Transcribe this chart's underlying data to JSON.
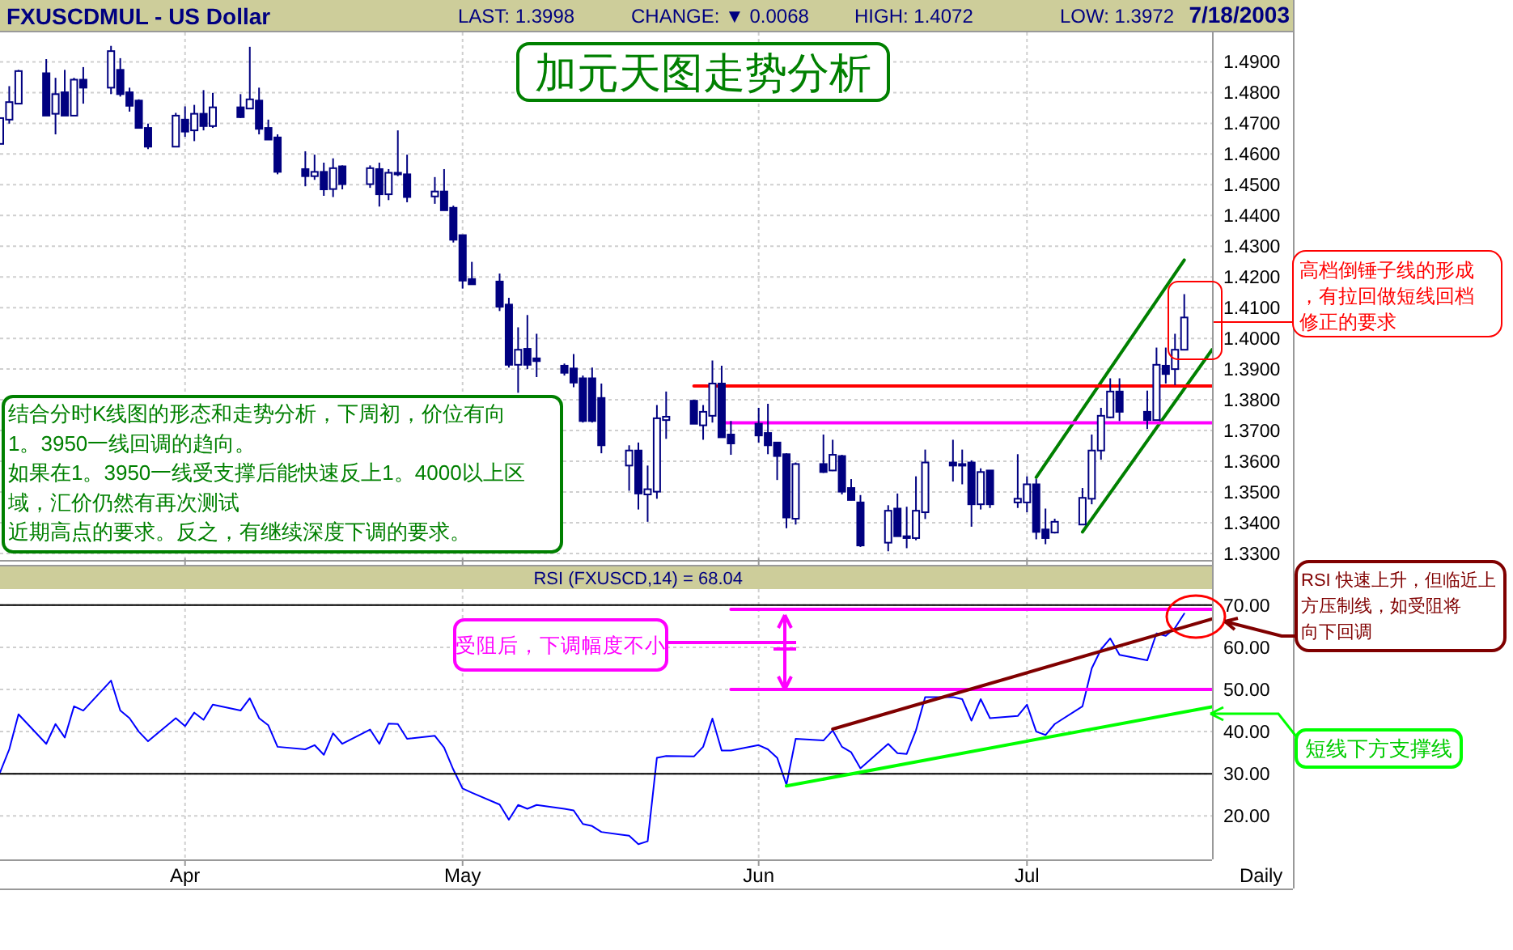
{
  "chart_data": [
    {
      "type": "candlestick",
      "title": "FXUSCDMUL - US Dollar",
      "x": [
        "2003-03-12",
        "2003-03-13",
        "2003-03-14",
        "2003-03-17",
        "2003-03-18",
        "2003-03-19",
        "2003-03-20",
        "2003-03-21",
        "2003-03-24",
        "2003-03-25",
        "2003-03-26",
        "2003-03-27",
        "2003-03-28",
        "2003-03-31",
        "2003-04-01",
        "2003-04-02",
        "2003-04-03",
        "2003-04-04",
        "2003-04-07",
        "2003-04-08",
        "2003-04-09",
        "2003-04-10",
        "2003-04-11",
        "2003-04-14",
        "2003-04-15",
        "2003-04-16",
        "2003-04-17",
        "2003-04-18",
        "2003-04-21",
        "2003-04-22",
        "2003-04-23",
        "2003-04-24",
        "2003-04-25",
        "2003-04-28",
        "2003-04-29",
        "2003-04-30",
        "2003-05-01",
        "2003-05-02",
        "2003-05-05",
        "2003-05-06",
        "2003-05-07",
        "2003-05-08",
        "2003-05-09",
        "2003-05-12",
        "2003-05-13",
        "2003-05-14",
        "2003-05-15",
        "2003-05-16",
        "2003-05-19",
        "2003-05-20",
        "2003-05-21",
        "2003-05-22",
        "2003-05-23",
        "2003-05-26",
        "2003-05-27",
        "2003-05-28",
        "2003-05-29",
        "2003-05-30",
        "2003-06-02",
        "2003-06-03",
        "2003-06-04",
        "2003-06-05",
        "2003-06-06",
        "2003-06-09",
        "2003-06-10",
        "2003-06-11",
        "2003-06-12",
        "2003-06-13",
        "2003-06-16",
        "2003-06-17",
        "2003-06-18",
        "2003-06-19",
        "2003-06-20",
        "2003-06-23",
        "2003-06-24",
        "2003-06-25",
        "2003-06-26",
        "2003-06-27",
        "2003-06-30",
        "2003-07-01",
        "2003-07-02",
        "2003-07-03",
        "2003-07-04",
        "2003-07-07",
        "2003-07-08",
        "2003-07-09",
        "2003-07-10",
        "2003-07-11",
        "2003-07-14",
        "2003-07-15",
        "2003-07-16",
        "2003-07-17",
        "2003-07-18"
      ],
      "ohlc": [
        [
          1.4633,
          1.4717,
          1.4633,
          1.4717
        ],
        [
          1.4712,
          1.4821,
          1.4699,
          1.4769
        ],
        [
          1.4764,
          1.4874,
          1.4764,
          1.487
        ],
        [
          1.4863,
          1.4909,
          1.4725,
          1.4725
        ],
        [
          1.4731,
          1.4848,
          1.4664,
          1.4795
        ],
        [
          1.4801,
          1.4874,
          1.4725,
          1.4725
        ],
        [
          1.4725,
          1.4848,
          1.4725,
          1.4842
        ],
        [
          1.4842,
          1.4883,
          1.4764,
          1.4816
        ],
        [
          1.4816,
          1.4952,
          1.4795,
          1.4935
        ],
        [
          1.4874,
          1.4912,
          1.4787,
          1.4795
        ],
        [
          1.4801,
          1.4816,
          1.4738,
          1.4757
        ],
        [
          1.4774,
          1.4778,
          1.4685,
          1.4685
        ],
        [
          1.4685,
          1.4699,
          1.4616,
          1.4624
        ],
        [
          1.4624,
          1.4734,
          1.4624,
          1.4725
        ],
        [
          1.4712,
          1.4755,
          1.4656,
          1.4673
        ],
        [
          1.4677,
          1.476,
          1.4642,
          1.4731
        ],
        [
          1.4731,
          1.4808,
          1.4677,
          1.4691
        ],
        [
          1.4691,
          1.4799,
          1.4685,
          1.4752
        ],
        [
          1.4752,
          1.4795,
          1.4717,
          1.472
        ],
        [
          1.4748,
          1.4949,
          1.4748,
          1.4778
        ],
        [
          1.4774,
          1.4816,
          1.4664,
          1.4682
        ],
        [
          1.4685,
          1.4712,
          1.4647,
          1.4647
        ],
        [
          1.4654,
          1.4664,
          1.4534,
          1.4542
        ],
        [
          1.4551,
          1.4609,
          1.4495,
          1.4528
        ],
        [
          1.4528,
          1.4598,
          1.4516,
          1.4542
        ],
        [
          1.4542,
          1.4572,
          1.4464,
          1.4485
        ],
        [
          1.4486,
          1.4586,
          1.446,
          1.4554
        ],
        [
          1.456,
          1.4563,
          1.4485,
          1.4502
        ],
        [
          1.4502,
          1.4563,
          1.449,
          1.4554
        ],
        [
          1.4551,
          1.4572,
          1.4429,
          1.4469
        ],
        [
          1.4469,
          1.4551,
          1.445,
          1.4539
        ],
        [
          1.4539,
          1.4677,
          1.4528,
          1.4534
        ],
        [
          1.4534,
          1.4598,
          1.4443,
          1.446
        ],
        [
          1.4462,
          1.4525,
          1.4438,
          1.4478
        ],
        [
          1.4478,
          1.4551,
          1.4417,
          1.4417
        ],
        [
          1.4425,
          1.4432,
          1.4312,
          1.4321
        ],
        [
          1.4336,
          1.4336,
          1.4162,
          1.4188
        ],
        [
          1.4193,
          1.4249,
          1.4176,
          1.4176
        ],
        [
          1.4185,
          1.4211,
          1.4089,
          1.4103
        ],
        [
          1.411,
          1.4132,
          1.3905,
          1.3914
        ],
        [
          1.3914,
          1.4036,
          1.3823,
          1.3963
        ],
        [
          1.3966,
          1.4076,
          1.39,
          1.3914
        ],
        [
          1.3935,
          1.4015,
          1.3874,
          1.3926
        ],
        [
          1.3911,
          1.3918,
          1.3879,
          1.3888
        ],
        [
          1.3902,
          1.3949,
          1.3841,
          1.3856
        ],
        [
          1.387,
          1.3879,
          1.3726,
          1.3731
        ],
        [
          1.387,
          1.3905,
          1.3726,
          1.3731
        ],
        [
          1.3806,
          1.3853,
          1.3626,
          1.3652
        ],
        [
          1.3586,
          1.3652,
          1.3504,
          1.3635
        ],
        [
          1.3635,
          1.3661,
          1.3443,
          1.3495
        ],
        [
          1.3492,
          1.3586,
          1.3403,
          1.3509
        ],
        [
          1.3501,
          1.3783,
          1.3478,
          1.374
        ],
        [
          1.3734,
          1.3827,
          1.3673,
          1.3745
        ],
        [
          1.3797,
          1.38,
          1.3722,
          1.3722
        ],
        [
          1.3717,
          1.3783,
          1.367,
          1.3761
        ],
        [
          1.3748,
          1.3928,
          1.3726,
          1.3853
        ],
        [
          1.3853,
          1.3911,
          1.3678,
          1.3678
        ],
        [
          1.3687,
          1.3731,
          1.3621,
          1.3658
        ],
        [
          1.3722,
          1.3774,
          1.3661,
          1.3684
        ],
        [
          1.3692,
          1.3787,
          1.3623,
          1.3652
        ],
        [
          1.3661,
          1.3661,
          1.3539,
          1.3617
        ],
        [
          1.3623,
          1.3626,
          1.3382,
          1.3417
        ],
        [
          1.3413,
          1.3596,
          1.3394,
          1.3591
        ],
        [
          1.3591,
          1.3687,
          1.3562,
          1.3565
        ],
        [
          1.357,
          1.367,
          1.3568,
          1.3621
        ],
        [
          1.3617,
          1.3621,
          1.3492,
          1.3501
        ],
        [
          1.3513,
          1.3542,
          1.3473,
          1.3474
        ],
        [
          1.3466,
          1.349,
          1.3321,
          1.3326
        ],
        [
          1.3335,
          1.3457,
          1.3307,
          1.3439
        ],
        [
          1.3446,
          1.3495,
          1.3356,
          1.3356
        ],
        [
          1.3356,
          1.3452,
          1.3317,
          1.335
        ],
        [
          1.335,
          1.3551,
          1.3343,
          1.3439
        ],
        [
          1.3434,
          1.3638,
          1.3412,
          1.3596
        ],
        [
          1.3596,
          1.367,
          1.3534,
          1.3586
        ],
        [
          1.3591,
          1.3638,
          1.3525,
          1.3586
        ],
        [
          1.3596,
          1.3603,
          1.3387,
          1.346
        ],
        [
          1.346,
          1.3577,
          1.3443,
          1.3565
        ],
        [
          1.357,
          1.357,
          1.3448,
          1.346
        ],
        [
          1.3466,
          1.3623,
          1.3448,
          1.3478
        ],
        [
          1.3466,
          1.3551,
          1.3434,
          1.3525
        ],
        [
          1.3525,
          1.3542,
          1.3346,
          1.337
        ],
        [
          1.3378,
          1.3446,
          1.333,
          1.335
        ],
        [
          1.3368,
          1.3413,
          1.3365,
          1.3403
        ],
        [
          1.3394,
          1.3513,
          1.3394,
          1.3481
        ],
        [
          1.3478,
          1.3687,
          1.346,
          1.3635
        ],
        [
          1.3635,
          1.3774,
          1.3605,
          1.3748
        ],
        [
          1.3743,
          1.387,
          1.374,
          1.3827
        ],
        [
          1.3827,
          1.387,
          1.3731,
          1.3761
        ],
        [
          1.3761,
          1.383,
          1.3705,
          1.3734
        ],
        [
          1.3734,
          1.397,
          1.3734,
          1.3914
        ],
        [
          1.3911,
          1.397,
          1.3853,
          1.3884
        ],
        [
          1.39,
          1.4015,
          1.3848,
          1.3963
        ],
        [
          1.3963,
          1.4144,
          1.3963,
          1.4068
        ]
      ],
      "color": "#000080",
      "series": [
        {
          "type": "line",
          "color": "#008000",
          "x": [
            "2003-07-02",
            "2003-07-18"
          ],
          "values": [
            1.3548,
            1.4255
          ]
        },
        {
          "type": "line",
          "color": "#008000",
          "x": [
            "2003-07-07",
            "2003-07-21"
          ],
          "values": [
            1.337,
            1.3963
          ]
        },
        {
          "type": "line",
          "color": "#ff0000",
          "x": [
            "2003-05-26",
            "2003-07-21"
          ],
          "values": [
            1.3845,
            1.3845
          ]
        },
        {
          "type": "line",
          "color": "#ff00ff",
          "x": [
            "2003-05-29",
            "2003-07-21"
          ],
          "values": [
            1.3725,
            1.3725
          ]
        }
      ],
      "xlim": [
        "2003-03-12",
        "2003-07-21"
      ],
      "xticks": [
        {
          "value": "2003-04-01",
          "label": null
        },
        {
          "value": "2003-05-01",
          "label": null
        },
        {
          "value": "2003-06-02",
          "label": null
        },
        {
          "value": "2003-07-01",
          "label": null
        }
      ],
      "ylim": [
        1.3284,
        1.4996
      ],
      "yticks": [
        {
          "value": 1.33,
          "label": "1.3300"
        },
        {
          "value": 1.34,
          "label": "1.3400"
        },
        {
          "value": 1.35,
          "label": "1.3500"
        },
        {
          "value": 1.36,
          "label": "1.3600"
        },
        {
          "value": 1.37,
          "label": "1.3700"
        },
        {
          "value": 1.38,
          "label": "1.3800"
        },
        {
          "value": 1.39,
          "label": "1.3900"
        },
        {
          "value": 1.4,
          "label": "1.4000"
        },
        {
          "value": 1.41,
          "label": "1.4100"
        },
        {
          "value": 1.42,
          "label": "1.4200"
        },
        {
          "value": 1.43,
          "label": "1.4300"
        },
        {
          "value": 1.44,
          "label": "1.4400"
        },
        {
          "value": 1.45,
          "label": "1.4500"
        },
        {
          "value": 1.46,
          "label": "1.4600"
        },
        {
          "value": 1.47,
          "label": "1.4700"
        },
        {
          "value": 1.48,
          "label": "1.4800"
        },
        {
          "value": 1.49,
          "label": "1.4900"
        }
      ],
      "tick_labels": "y",
      "grid": true,
      "annotations": [
        "LAST: 1.3998",
        "CHANGE: ▼ 0.0068",
        "HIGH: 1.4072",
        "LOW: 1.3972",
        "7/18/2003",
        "加元天图走势分析",
        "结合分时K线图的形态和走势分析，下周初，价位有向1。3950一线回调的趋向。如果在1。3950一线受支撑后能快速反上1。4000以上区域，汇价仍然有再次测试近期高点的要求。反之，有继续深度下调的要求。",
        "高档倒锤子线的形成，有拉回做短线回档修正的要求"
      ]
    },
    {
      "type": "line",
      "title": "RSI (FXUSCD,14) = 68.04",
      "x": [
        "2003-03-12",
        "2003-03-13",
        "2003-03-14",
        "2003-03-17",
        "2003-03-18",
        "2003-03-19",
        "2003-03-20",
        "2003-03-21",
        "2003-03-24",
        "2003-03-25",
        "2003-03-26",
        "2003-03-27",
        "2003-03-28",
        "2003-03-31",
        "2003-04-01",
        "2003-04-02",
        "2003-04-03",
        "2003-04-04",
        "2003-04-07",
        "2003-04-08",
        "2003-04-09",
        "2003-04-10",
        "2003-04-11",
        "2003-04-14",
        "2003-04-15",
        "2003-04-16",
        "2003-04-17",
        "2003-04-18",
        "2003-04-21",
        "2003-04-22",
        "2003-04-23",
        "2003-04-24",
        "2003-04-25",
        "2003-04-28",
        "2003-04-29",
        "2003-04-30",
        "2003-05-01",
        "2003-05-02",
        "2003-05-05",
        "2003-05-06",
        "2003-05-07",
        "2003-05-08",
        "2003-05-09",
        "2003-05-12",
        "2003-05-13",
        "2003-05-14",
        "2003-05-15",
        "2003-05-16",
        "2003-05-19",
        "2003-05-20",
        "2003-05-21",
        "2003-05-22",
        "2003-05-23",
        "2003-05-26",
        "2003-05-27",
        "2003-05-28",
        "2003-05-29",
        "2003-05-30",
        "2003-06-02",
        "2003-06-03",
        "2003-06-04",
        "2003-06-05",
        "2003-06-06",
        "2003-06-09",
        "2003-06-10",
        "2003-06-11",
        "2003-06-12",
        "2003-06-13",
        "2003-06-16",
        "2003-06-17",
        "2003-06-18",
        "2003-06-19",
        "2003-06-20",
        "2003-06-23",
        "2003-06-24",
        "2003-06-25",
        "2003-06-26",
        "2003-06-27",
        "2003-06-30",
        "2003-07-01",
        "2003-07-02",
        "2003-07-03",
        "2003-07-04",
        "2003-07-07",
        "2003-07-08",
        "2003-07-09",
        "2003-07-10",
        "2003-07-11",
        "2003-07-14",
        "2003-07-15",
        "2003-07-16",
        "2003-07-17",
        "2003-07-18"
      ],
      "series": [
        {
          "color": "#0000ff",
          "values": [
            30.3,
            35.8,
            44.1,
            37.1,
            41.8,
            38.6,
            46.0,
            45.0,
            52.1,
            45.0,
            43.2,
            40.0,
            37.7,
            43.2,
            41.3,
            44.5,
            42.8,
            46.4,
            45.0,
            47.9,
            43.2,
            41.5,
            36.4,
            35.8,
            36.8,
            34.5,
            39.6,
            37.1,
            40.5,
            37.1,
            41.9,
            41.8,
            38.3,
            39.0,
            36.2,
            31.0,
            26.5,
            25.5,
            22.7,
            19.1,
            22.6,
            21.7,
            22.6,
            21.7,
            21.3,
            18.1,
            17.6,
            16.2,
            15.3,
            13.3,
            14.0,
            33.8,
            34.2,
            34.1,
            36.4,
            43.1,
            35.5,
            35.5,
            36.8,
            35.8,
            33.8,
            27.4,
            38.3,
            37.9,
            40.3,
            36.4,
            35.1,
            31.3,
            37.1,
            34.9,
            34.7,
            40.3,
            48.2,
            48.2,
            47.7,
            42.6,
            47.7,
            43.2,
            43.7,
            46.4,
            40.0,
            39.2,
            41.8,
            46.0,
            55.0,
            59.5,
            62.1,
            58.2,
            56.9,
            63.3,
            62.7,
            64.6,
            68.0
          ]
        },
        {
          "color": "#000000",
          "x": [
            "2003-03-12",
            "2003-07-21"
          ],
          "values": [
            70,
            70
          ]
        },
        {
          "color": "#000000",
          "x": [
            "2003-03-12",
            "2003-07-21"
          ],
          "values": [
            30,
            30
          ]
        },
        {
          "color": "#ff00ff",
          "x": [
            "2003-05-30",
            "2003-07-21"
          ],
          "values": [
            69,
            69
          ]
        },
        {
          "color": "#ff00ff",
          "x": [
            "2003-05-30",
            "2003-07-21"
          ],
          "values": [
            50,
            50
          ]
        },
        {
          "color": "#800000",
          "x": [
            "2003-06-10",
            "2003-07-21"
          ],
          "values": [
            40.6,
            66.7
          ]
        },
        {
          "color": "#00ff00",
          "x": [
            "2003-06-05",
            "2003-07-21"
          ],
          "values": [
            27.1,
            45.9
          ]
        }
      ],
      "xlim": [
        "2003-03-12",
        "2003-07-21"
      ],
      "xticks": [
        {
          "value": "2003-04-01",
          "label": "Apr"
        },
        {
          "value": "2003-05-01",
          "label": "May"
        },
        {
          "value": "2003-06-02",
          "label": "Jun"
        },
        {
          "value": "2003-07-01",
          "label": "Jul"
        }
      ],
      "ylim": [
        9.7,
        73.8
      ],
      "yticks": [
        {
          "value": 20,
          "label": "20.00"
        },
        {
          "value": 30,
          "label": "30.00"
        },
        {
          "value": 40,
          "label": "40.00"
        },
        {
          "value": 50,
          "label": "50.00"
        },
        {
          "value": 60,
          "label": "60.00"
        },
        {
          "value": 70,
          "label": "70.00"
        }
      ],
      "grid": true,
      "annotations": [
        "受阻后，下调幅度不小",
        "RSI 快速上升，但临近上方压制线，如受阻将向下回调",
        "短线下方支撑线",
        "Daily"
      ]
    }
  ]
}
